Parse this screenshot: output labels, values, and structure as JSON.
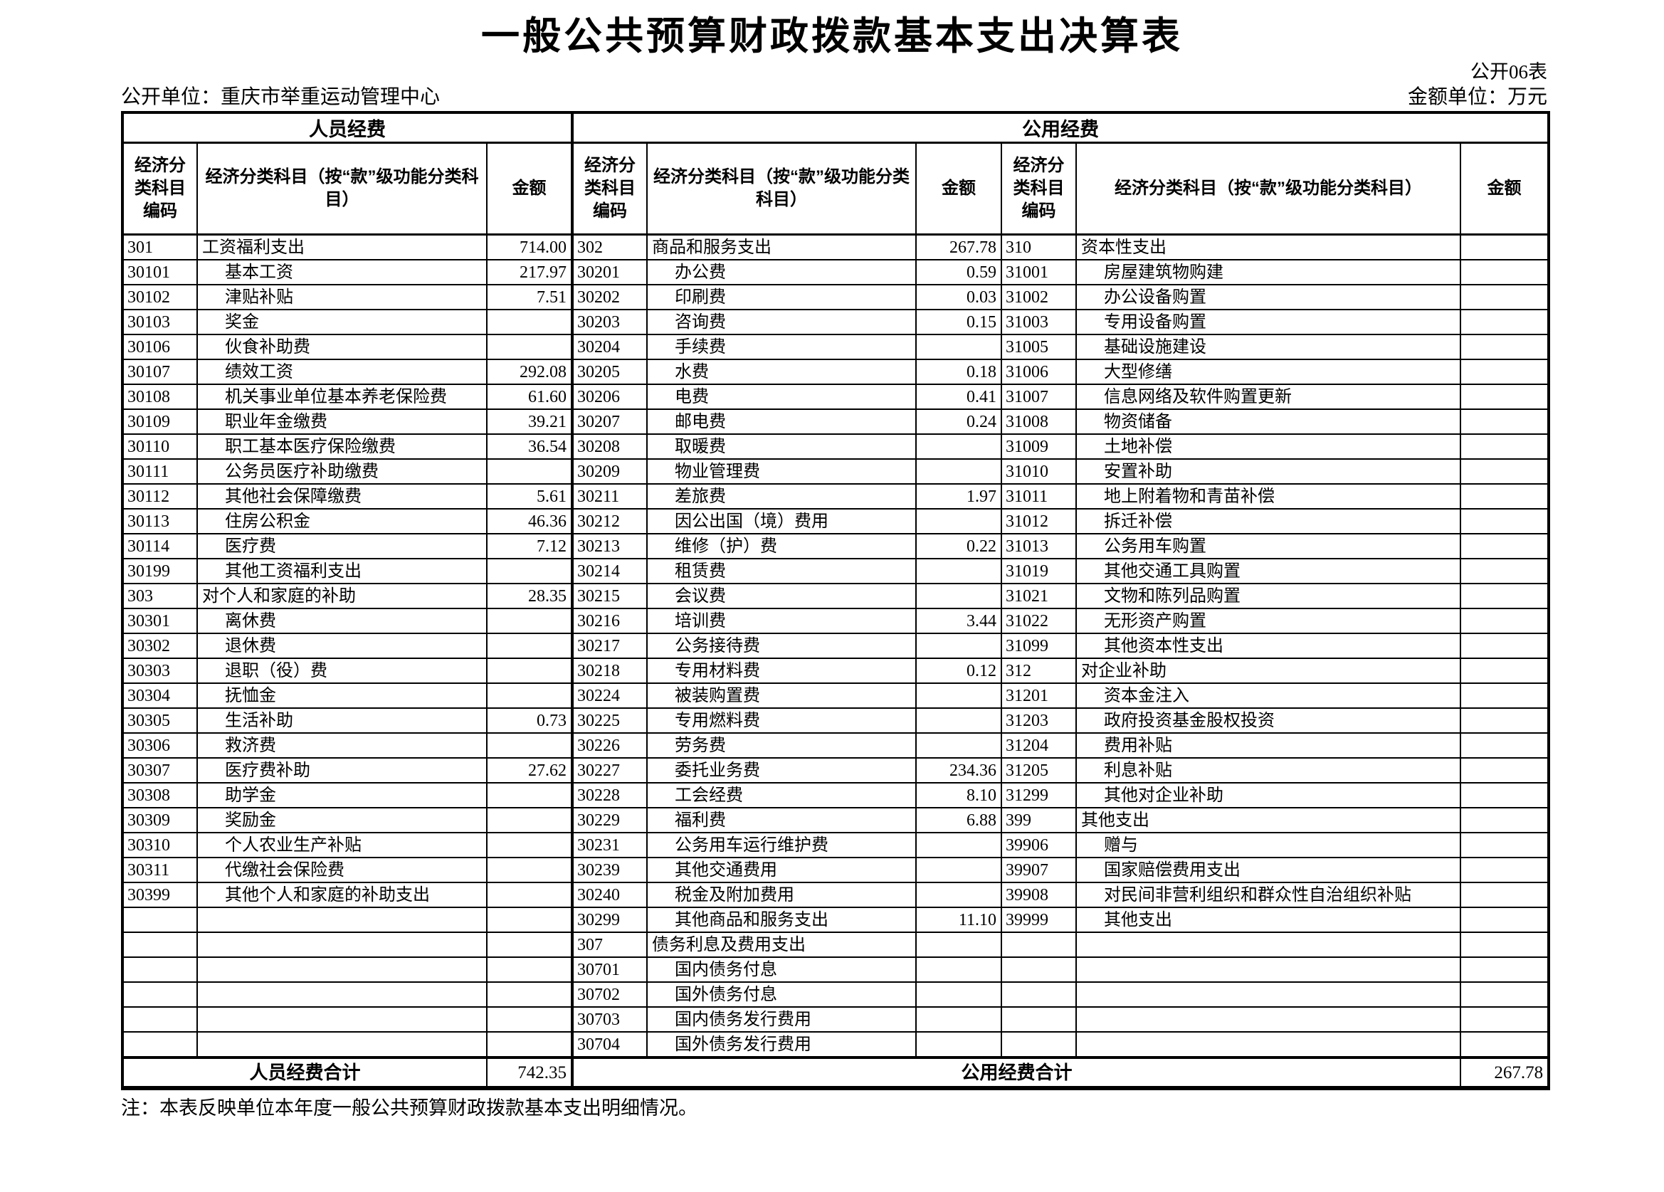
{
  "title": "一般公共预算财政拨款基本支出决算表",
  "meta": {
    "table_no": "公开06表",
    "unit_label": "公开单位：重庆市举重运动管理中心",
    "amount_unit": "金额单位：万元",
    "note": "注：本表反映单位本年度一般公共预算财政拨款基本支出明细情况。"
  },
  "table": {
    "groups": [
      {
        "label": "人员经费"
      },
      {
        "label": "公用经费"
      }
    ],
    "headers": {
      "code": "经济分类科目编码",
      "subject": "经济分类科目（按“款”级功能分类科目）",
      "amount": "金额"
    },
    "sections": {
      "personnel": {
        "rows": [
          [
            "301",
            "工资福利支出",
            "714.00",
            0
          ],
          [
            "30101",
            "基本工资",
            "217.97",
            1
          ],
          [
            "30102",
            "津贴补贴",
            "7.51",
            1
          ],
          [
            "30103",
            "奖金",
            "",
            1
          ],
          [
            "30106",
            "伙食补助费",
            "",
            1
          ],
          [
            "30107",
            "绩效工资",
            "292.08",
            1
          ],
          [
            "30108",
            "机关事业单位基本养老保险费",
            "61.60",
            1
          ],
          [
            "30109",
            "职业年金缴费",
            "39.21",
            1
          ],
          [
            "30110",
            "职工基本医疗保险缴费",
            "36.54",
            1
          ],
          [
            "30111",
            "公务员医疗补助缴费",
            "",
            1
          ],
          [
            "30112",
            "其他社会保障缴费",
            "5.61",
            1
          ],
          [
            "30113",
            "住房公积金",
            "46.36",
            1
          ],
          [
            "30114",
            "医疗费",
            "7.12",
            1
          ],
          [
            "30199",
            "其他工资福利支出",
            "",
            1
          ],
          [
            "303",
            "对个人和家庭的补助",
            "28.35",
            0
          ],
          [
            "30301",
            "离休费",
            "",
            1
          ],
          [
            "30302",
            "退休费",
            "",
            1
          ],
          [
            "30303",
            "退职（役）费",
            "",
            1
          ],
          [
            "30304",
            "抚恤金",
            "",
            1
          ],
          [
            "30305",
            "生活补助",
            "0.73",
            1
          ],
          [
            "30306",
            "救济费",
            "",
            1
          ],
          [
            "30307",
            "医疗费补助",
            "27.62",
            1
          ],
          [
            "30308",
            "助学金",
            "",
            1
          ],
          [
            "30309",
            "奖励金",
            "",
            1
          ],
          [
            "30310",
            "个人农业生产补贴",
            "",
            1
          ],
          [
            "30311",
            "代缴社会保险费",
            "",
            1
          ],
          [
            "30399",
            "其他个人和家庭的补助支出",
            "",
            1
          ],
          [
            "",
            "",
            "",
            0
          ],
          [
            "",
            "",
            "",
            0
          ],
          [
            "",
            "",
            "",
            0
          ],
          [
            "",
            "",
            "",
            0
          ],
          [
            "",
            "",
            "",
            0
          ],
          [
            "",
            "",
            "",
            0
          ]
        ]
      },
      "public": {
        "rows": [
          [
            "302",
            "商品和服务支出",
            "267.78",
            0
          ],
          [
            "30201",
            "办公费",
            "0.59",
            1
          ],
          [
            "30202",
            "印刷费",
            "0.03",
            1
          ],
          [
            "30203",
            "咨询费",
            "0.15",
            1
          ],
          [
            "30204",
            "手续费",
            "",
            1
          ],
          [
            "30205",
            "水费",
            "0.18",
            1
          ],
          [
            "30206",
            "电费",
            "0.41",
            1
          ],
          [
            "30207",
            "邮电费",
            "0.24",
            1
          ],
          [
            "30208",
            "取暖费",
            "",
            1
          ],
          [
            "30209",
            "物业管理费",
            "",
            1
          ],
          [
            "30211",
            "差旅费",
            "1.97",
            1
          ],
          [
            "30212",
            "因公出国（境）费用",
            "",
            1
          ],
          [
            "30213",
            "维修（护）费",
            "0.22",
            1
          ],
          [
            "30214",
            "租赁费",
            "",
            1
          ],
          [
            "30215",
            "会议费",
            "",
            1
          ],
          [
            "30216",
            "培训费",
            "3.44",
            1
          ],
          [
            "30217",
            "公务接待费",
            "",
            1
          ],
          [
            "30218",
            "专用材料费",
            "0.12",
            1
          ],
          [
            "30224",
            "被装购置费",
            "",
            1
          ],
          [
            "30225",
            "专用燃料费",
            "",
            1
          ],
          [
            "30226",
            "劳务费",
            "",
            1
          ],
          [
            "30227",
            "委托业务费",
            "234.36",
            1
          ],
          [
            "30228",
            "工会经费",
            "8.10",
            1
          ],
          [
            "30229",
            "福利费",
            "6.88",
            1
          ],
          [
            "30231",
            "公务用车运行维护费",
            "",
            1
          ],
          [
            "30239",
            "其他交通费用",
            "",
            1
          ],
          [
            "30240",
            "税金及附加费用",
            "",
            1
          ],
          [
            "30299",
            "其他商品和服务支出",
            "11.10",
            1
          ],
          [
            "307",
            "债务利息及费用支出",
            "",
            0
          ],
          [
            "30701",
            "国内债务付息",
            "",
            1
          ],
          [
            "30702",
            "国外债务付息",
            "",
            1
          ],
          [
            "30703",
            "国内债务发行费用",
            "",
            1
          ],
          [
            "30704",
            "国外债务发行费用",
            "",
            1
          ]
        ]
      },
      "capital": {
        "rows": [
          [
            "310",
            "资本性支出",
            "",
            0
          ],
          [
            "31001",
            "房屋建筑物购建",
            "",
            1
          ],
          [
            "31002",
            "办公设备购置",
            "",
            1
          ],
          [
            "31003",
            "专用设备购置",
            "",
            1
          ],
          [
            "31005",
            "基础设施建设",
            "",
            1
          ],
          [
            "31006",
            "大型修缮",
            "",
            1
          ],
          [
            "31007",
            "信息网络及软件购置更新",
            "",
            1
          ],
          [
            "31008",
            "物资储备",
            "",
            1
          ],
          [
            "31009",
            "土地补偿",
            "",
            1
          ],
          [
            "31010",
            "安置补助",
            "",
            1
          ],
          [
            "31011",
            "地上附着物和青苗补偿",
            "",
            1
          ],
          [
            "31012",
            "拆迁补偿",
            "",
            1
          ],
          [
            "31013",
            "公务用车购置",
            "",
            1
          ],
          [
            "31019",
            "其他交通工具购置",
            "",
            1
          ],
          [
            "31021",
            "文物和陈列品购置",
            "",
            1
          ],
          [
            "31022",
            "无形资产购置",
            "",
            1
          ],
          [
            "31099",
            "其他资本性支出",
            "",
            1
          ],
          [
            "312",
            "对企业补助",
            "",
            0
          ],
          [
            "31201",
            "资本金注入",
            "",
            1
          ],
          [
            "31203",
            "政府投资基金股权投资",
            "",
            1
          ],
          [
            "31204",
            "费用补贴",
            "",
            1
          ],
          [
            "31205",
            "利息补贴",
            "",
            1
          ],
          [
            "31299",
            "其他对企业补助",
            "",
            1
          ],
          [
            "399",
            "其他支出",
            "",
            0
          ],
          [
            "39906",
            "赠与",
            "",
            1
          ],
          [
            "39907",
            "国家赔偿费用支出",
            "",
            1
          ],
          [
            "39908",
            "对民间非营利组织和群众性自治组织补贴",
            "",
            1
          ],
          [
            "39999",
            "其他支出",
            "",
            1
          ],
          [
            "",
            "",
            "",
            0
          ],
          [
            "",
            "",
            "",
            0
          ],
          [
            "",
            "",
            "",
            0
          ],
          [
            "",
            "",
            "",
            0
          ],
          [
            "",
            "",
            "",
            0
          ]
        ]
      }
    },
    "totals": {
      "personnel_label": "人员经费合计",
      "personnel_amount": "742.35",
      "public_label": "公用经费合计",
      "public_amount": "267.78"
    }
  }
}
